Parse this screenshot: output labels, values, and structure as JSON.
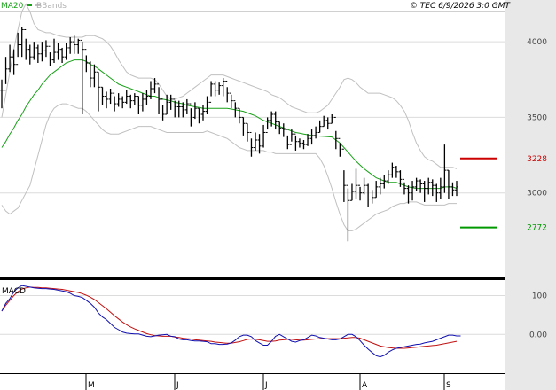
{
  "header": {
    "ma_label": "MA20",
    "bbands_label": "BBands",
    "copyright": "© TEC 6/9/2026 3:0 GMT"
  },
  "colors": {
    "price": "#000000",
    "ma20": "#19a019",
    "bbands": "#c0c0c0",
    "grid": "#dcdcdc",
    "resistance": "#cc0000",
    "support": "#009900",
    "macd": "#1010b0",
    "signal": "#c01010",
    "axis_panel": "#e8e8e8",
    "axis_text": "#444444"
  },
  "chart_data": [
    {
      "type": "ohlc",
      "title": "",
      "x_month_labels": [
        {
          "label": "M",
          "bar": 21
        },
        {
          "label": "J",
          "bar": 43
        },
        {
          "label": "J",
          "bar": 65
        },
        {
          "label": "A",
          "bar": 89
        },
        {
          "label": "S",
          "bar": 110
        }
      ],
      "ylim": [
        2500,
        4200
      ],
      "y_ticks": [
        {
          "value": 4000,
          "label": "4000"
        },
        {
          "value": 3500,
          "label": "3500"
        },
        {
          "value": 3000,
          "label": "3000"
        }
      ],
      "levels": [
        {
          "name": "resistance",
          "value": 3228,
          "label": "3228"
        },
        {
          "name": "support",
          "value": 2772,
          "label": "2772"
        }
      ],
      "close": [
        3680,
        3820,
        3900,
        3850,
        3980,
        4080,
        3950,
        3900,
        3960,
        3920,
        3940,
        3970,
        3880,
        3930,
        3950,
        3900,
        3960,
        4000,
        3980,
        4010,
        3950,
        3860,
        3760,
        3800,
        3700,
        3640,
        3620,
        3660,
        3590,
        3620,
        3600,
        3640,
        3610,
        3640,
        3580,
        3620,
        3640,
        3690,
        3720,
        3620,
        3520,
        3600,
        3620,
        3570,
        3570,
        3550,
        3590,
        3500,
        3560,
        3520,
        3540,
        3600,
        3720,
        3680,
        3710,
        3740,
        3660,
        3610,
        3560,
        3500,
        3460,
        3400,
        3300,
        3350,
        3310,
        3400,
        3480,
        3520,
        3470,
        3430,
        3420,
        3320,
        3390,
        3340,
        3330,
        3320,
        3360,
        3380,
        3400,
        3440,
        3480,
        3460,
        3500,
        3360,
        3290,
        3050,
        2950,
        3010,
        3050,
        3000,
        3050,
        2960,
        2970,
        3040,
        3060,
        3080,
        3120,
        3170,
        3140,
        3090,
        3030,
        3000,
        3040,
        3080,
        3060,
        3030,
        3070,
        3050,
        3000,
        3040,
        3150,
        3040,
        3020,
        3040
      ],
      "high": [
        3750,
        3900,
        3980,
        3950,
        4060,
        4100,
        4020,
        3980,
        4000,
        3980,
        4000,
        4010,
        3930,
        4020,
        3990,
        3960,
        3990,
        4030,
        4040,
        4020,
        4000,
        3910,
        3870,
        3850,
        3800,
        3700,
        3670,
        3690,
        3640,
        3660,
        3640,
        3680,
        3650,
        3660,
        3640,
        3660,
        3680,
        3740,
        3760,
        3700,
        3580,
        3650,
        3650,
        3610,
        3610,
        3600,
        3620,
        3560,
        3600,
        3560,
        3580,
        3640,
        3740,
        3740,
        3730,
        3760,
        3700,
        3650,
        3600,
        3560,
        3500,
        3460,
        3360,
        3400,
        3390,
        3450,
        3500,
        3540,
        3540,
        3470,
        3460,
        3380,
        3420,
        3380,
        3360,
        3350,
        3390,
        3420,
        3440,
        3480,
        3510,
        3500,
        3520,
        3410,
        3330,
        3150,
        3030,
        3060,
        3160,
        3040,
        3100,
        3060,
        3020,
        3080,
        3100,
        3120,
        3150,
        3200,
        3180,
        3150,
        3070,
        3050,
        3080,
        3100,
        3090,
        3080,
        3100,
        3090,
        3060,
        3100,
        3320,
        3150,
        3070,
        3080
      ],
      "low": [
        3560,
        3720,
        3800,
        3780,
        3900,
        3900,
        3880,
        3850,
        3880,
        3860,
        3870,
        3900,
        3840,
        3860,
        3880,
        3860,
        3880,
        3920,
        3920,
        3920,
        3520,
        3800,
        3700,
        3700,
        3540,
        3580,
        3560,
        3590,
        3540,
        3570,
        3560,
        3590,
        3560,
        3580,
        3520,
        3540,
        3580,
        3620,
        3660,
        3520,
        3480,
        3520,
        3550,
        3500,
        3500,
        3500,
        3520,
        3440,
        3490,
        3460,
        3480,
        3520,
        3640,
        3640,
        3650,
        3640,
        3600,
        3560,
        3500,
        3460,
        3380,
        3340,
        3240,
        3280,
        3260,
        3300,
        3420,
        3440,
        3420,
        3390,
        3370,
        3290,
        3340,
        3280,
        3300,
        3290,
        3310,
        3320,
        3360,
        3400,
        3440,
        3420,
        3460,
        3290,
        3240,
        2940,
        2680,
        2950,
        2960,
        2950,
        2990,
        2910,
        2930,
        2970,
        2990,
        3030,
        3060,
        3100,
        3100,
        3040,
        2990,
        2930,
        2950,
        3010,
        3000,
        2940,
        2990,
        2980,
        2940,
        2960,
        3000,
        2960,
        2980,
        2980
      ],
      "ma20": [
        3300,
        3340,
        3390,
        3430,
        3480,
        3520,
        3570,
        3610,
        3650,
        3680,
        3720,
        3750,
        3780,
        3800,
        3820,
        3840,
        3860,
        3870,
        3880,
        3880,
        3880,
        3870,
        3850,
        3840,
        3820,
        3800,
        3780,
        3760,
        3740,
        3720,
        3710,
        3700,
        3690,
        3680,
        3670,
        3660,
        3650,
        3640,
        3640,
        3630,
        3620,
        3615,
        3610,
        3600,
        3595,
        3590,
        3580,
        3575,
        3570,
        3565,
        3560,
        3560,
        3560,
        3560,
        3560,
        3560,
        3560,
        3555,
        3550,
        3545,
        3540,
        3530,
        3520,
        3510,
        3495,
        3480,
        3470,
        3460,
        3450,
        3440,
        3430,
        3420,
        3410,
        3400,
        3395,
        3390,
        3385,
        3380,
        3378,
        3376,
        3374,
        3372,
        3370,
        3350,
        3330,
        3300,
        3270,
        3240,
        3210,
        3185,
        3160,
        3140,
        3120,
        3100,
        3090,
        3080,
        3070,
        3070,
        3070,
        3060,
        3050,
        3040,
        3035,
        3030,
        3030,
        3030,
        3030,
        3030,
        3030,
        3030,
        3040,
        3040,
        3040,
        3030
      ],
      "bb_upper": [
        3500,
        3650,
        3800,
        3950,
        4080,
        4200,
        4250,
        4200,
        4120,
        4080,
        4070,
        4060,
        4060,
        4050,
        4040,
        4035,
        4030,
        4030,
        4030,
        4030,
        4030,
        4040,
        4040,
        4040,
        4030,
        4020,
        4000,
        3970,
        3930,
        3880,
        3840,
        3800,
        3780,
        3770,
        3760,
        3760,
        3760,
        3760,
        3750,
        3720,
        3680,
        3640,
        3620,
        3620,
        3630,
        3640,
        3660,
        3680,
        3700,
        3720,
        3740,
        3760,
        3780,
        3780,
        3780,
        3780,
        3770,
        3760,
        3750,
        3740,
        3730,
        3720,
        3710,
        3700,
        3690,
        3680,
        3670,
        3650,
        3640,
        3630,
        3610,
        3590,
        3570,
        3560,
        3550,
        3540,
        3530,
        3530,
        3530,
        3540,
        3560,
        3580,
        3620,
        3660,
        3700,
        3750,
        3760,
        3750,
        3730,
        3700,
        3680,
        3660,
        3660,
        3660,
        3660,
        3650,
        3640,
        3630,
        3610,
        3580,
        3540,
        3480,
        3400,
        3330,
        3280,
        3240,
        3220,
        3210,
        3190,
        3170,
        3170,
        3170,
        3170,
        3160
      ],
      "bb_lower": [
        2920,
        2880,
        2860,
        2880,
        2900,
        2950,
        3000,
        3050,
        3150,
        3250,
        3350,
        3450,
        3520,
        3560,
        3580,
        3590,
        3590,
        3580,
        3570,
        3560,
        3560,
        3540,
        3510,
        3480,
        3450,
        3420,
        3400,
        3390,
        3390,
        3390,
        3400,
        3410,
        3420,
        3430,
        3440,
        3440,
        3440,
        3440,
        3430,
        3420,
        3410,
        3400,
        3400,
        3400,
        3400,
        3400,
        3400,
        3400,
        3400,
        3400,
        3400,
        3410,
        3400,
        3390,
        3380,
        3370,
        3360,
        3340,
        3320,
        3300,
        3290,
        3280,
        3280,
        3280,
        3280,
        3280,
        3270,
        3270,
        3260,
        3260,
        3260,
        3260,
        3260,
        3260,
        3260,
        3260,
        3260,
        3260,
        3260,
        3230,
        3180,
        3110,
        3030,
        2940,
        2860,
        2790,
        2750,
        2750,
        2760,
        2780,
        2800,
        2820,
        2840,
        2860,
        2870,
        2880,
        2890,
        2910,
        2920,
        2930,
        2930,
        2940,
        2940,
        2940,
        2930,
        2920,
        2920,
        2920,
        2920,
        2920,
        2920,
        2930,
        2930,
        2930
      ]
    },
    {
      "type": "line",
      "title": "MACD",
      "ylim": [
        -100,
        140
      ],
      "y_ticks": [
        {
          "value": 100,
          "label": "100"
        },
        {
          "value": 0,
          "label": "0.00"
        }
      ],
      "macd": [
        60,
        80,
        92,
        110,
        120,
        126,
        124,
        122,
        120,
        119,
        118,
        118,
        117,
        116,
        114,
        112,
        110,
        106,
        100,
        98,
        95,
        88,
        80,
        70,
        55,
        45,
        38,
        28,
        18,
        12,
        6,
        3,
        2,
        1,
        1,
        -2,
        -5,
        -6,
        -4,
        -2,
        -1,
        0,
        -5,
        -6,
        -12,
        -14,
        -14,
        -16,
        -17,
        -17,
        -18,
        -19,
        -24,
        -24,
        -26,
        -26,
        -25,
        -22,
        -15,
        -6,
        -2,
        -2,
        -6,
        -16,
        -22,
        -28,
        -28,
        -18,
        -5,
        0,
        -6,
        -12,
        -18,
        -20,
        -16,
        -14,
        -8,
        -2,
        -4,
        -8,
        -10,
        -12,
        -14,
        -14,
        -12,
        -6,
        0,
        0,
        -6,
        -16,
        -28,
        -38,
        -47,
        -55,
        -58,
        -54,
        -46,
        -40,
        -36,
        -34,
        -32,
        -30,
        -28,
        -26,
        -25,
        -22,
        -20,
        -18,
        -14,
        -10,
        -6,
        -2,
        -2,
        -4,
        -4
      ],
      "signal": [
        60,
        75,
        88,
        100,
        110,
        117,
        120,
        122,
        121,
        121,
        120,
        120,
        119,
        118,
        117,
        116,
        114,
        112,
        110,
        108,
        105,
        101,
        96,
        90,
        82,
        74,
        66,
        57,
        48,
        40,
        32,
        25,
        19,
        14,
        10,
        6,
        2,
        -1,
        -3,
        -4,
        -5,
        -5,
        -5,
        -7,
        -8,
        -10,
        -11,
        -12,
        -14,
        -15,
        -16,
        -17,
        -18,
        -20,
        -21,
        -22,
        -23,
        -23,
        -21,
        -19,
        -16,
        -13,
        -12,
        -13,
        -14,
        -16,
        -18,
        -18,
        -17,
        -15,
        -14,
        -13,
        -13,
        -14,
        -15,
        -15,
        -14,
        -13,
        -12,
        -11,
        -11,
        -11,
        -11,
        -11,
        -11,
        -10,
        -9,
        -8,
        -8,
        -10,
        -14,
        -18,
        -22,
        -26,
        -30,
        -32,
        -34,
        -35,
        -36,
        -36,
        -36,
        -35,
        -34,
        -33,
        -32,
        -31,
        -30,
        -29,
        -28,
        -26,
        -24,
        -22,
        -20,
        -18
      ]
    }
  ]
}
